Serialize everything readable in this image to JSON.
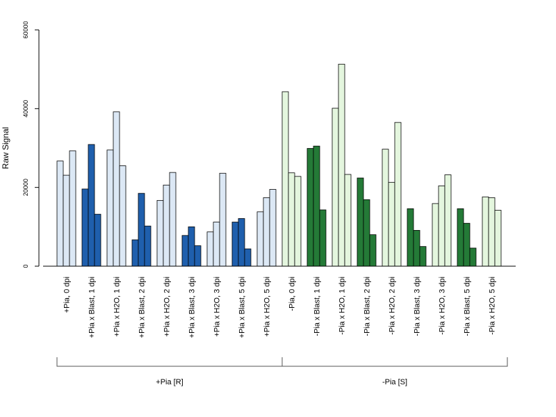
{
  "chart_data": {
    "type": "bar",
    "ylabel": "Raw Signal",
    "ylim": [
      0,
      60000
    ],
    "yticks": [
      0,
      20000,
      40000,
      60000
    ],
    "colors": {
      "light_blue": "#dce8f5",
      "dark_blue": "#1f5fad",
      "light_green": "#e4f6de",
      "dark_green": "#247a37",
      "stroke": "#000000"
    },
    "groups": [
      {
        "label": "+Pia, 0 dpi",
        "color": "light_blue",
        "values": [
          26700,
          23100,
          29300
        ]
      },
      {
        "label": "+Pia x Blast, 1 dpi",
        "color": "dark_blue",
        "values": [
          19600,
          30900,
          13200
        ]
      },
      {
        "label": "+Pia x H2O, 1 dpi",
        "color": "light_blue",
        "values": [
          29500,
          39200,
          25500
        ]
      },
      {
        "label": "+Pia x Blast, 2 dpi",
        "color": "dark_blue",
        "values": [
          6700,
          18500,
          10200
        ]
      },
      {
        "label": "+Pia x H2O, 2 dpi",
        "color": "light_blue",
        "values": [
          16700,
          20600,
          23800
        ]
      },
      {
        "label": "+Pia x Blast, 3 dpi",
        "color": "dark_blue",
        "values": [
          7800,
          10000,
          5200
        ]
      },
      {
        "label": "+Pia x H2O, 3 dpi",
        "color": "light_blue",
        "values": [
          8700,
          11200,
          23600
        ]
      },
      {
        "label": "+Pia x Blast, 5 dpi",
        "color": "dark_blue",
        "values": [
          11200,
          12100,
          4400
        ]
      },
      {
        "label": "+Pia x H2O, 5 dpi",
        "color": "light_blue",
        "values": [
          13800,
          17400,
          19500
        ]
      },
      {
        "label": "-Pia, 0 dpi",
        "color": "light_green",
        "values": [
          44300,
          23700,
          22800
        ]
      },
      {
        "label": "-Pia x Blast, 1 dpi",
        "color": "dark_green",
        "values": [
          29900,
          30500,
          14300
        ]
      },
      {
        "label": "-Pia x H2O, 1 dpi",
        "color": "light_green",
        "values": [
          40100,
          51300,
          23300
        ]
      },
      {
        "label": "-Pia x Blast, 2 dpi",
        "color": "dark_green",
        "values": [
          22400,
          16900,
          8000
        ]
      },
      {
        "label": "-Pia x H2O, 2 dpi",
        "color": "light_green",
        "values": [
          29700,
          21300,
          36500
        ]
      },
      {
        "label": "-Pia x Blast, 3 dpi",
        "color": "dark_green",
        "values": [
          14600,
          9100,
          5000
        ]
      },
      {
        "label": "-Pia x H2O, 3 dpi",
        "color": "light_green",
        "values": [
          15900,
          20400,
          23200
        ]
      },
      {
        "label": "-Pia x Blast, 5 dpi",
        "color": "dark_green",
        "values": [
          14600,
          10900,
          4600
        ]
      },
      {
        "label": "-Pia x H2O, 5 dpi",
        "color": "light_green",
        "values": [
          17600,
          17400,
          14200
        ]
      }
    ],
    "brackets": [
      {
        "label": "+Pia [R]",
        "from_group": 0,
        "to_group": 8
      },
      {
        "label": "-Pia [S]",
        "from_group": 9,
        "to_group": 17
      }
    ]
  }
}
